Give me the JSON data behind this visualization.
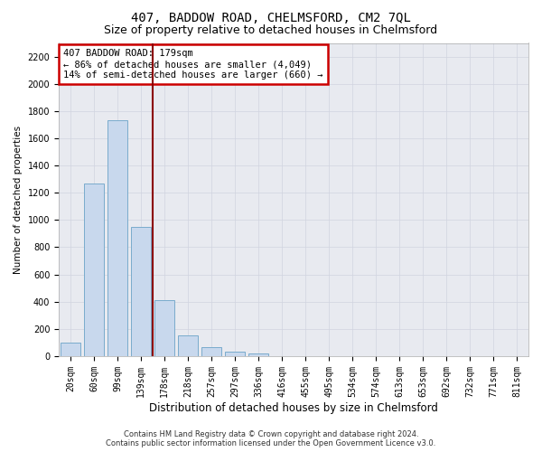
{
  "title": "407, BADDOW ROAD, CHELMSFORD, CM2 7QL",
  "subtitle": "Size of property relative to detached houses in Chelmsford",
  "xlabel": "Distribution of detached houses by size in Chelmsford",
  "ylabel": "Number of detached properties",
  "categories": [
    "20sqm",
    "60sqm",
    "99sqm",
    "139sqm",
    "178sqm",
    "218sqm",
    "257sqm",
    "297sqm",
    "336sqm",
    "416sqm",
    "455sqm",
    "495sqm",
    "534sqm",
    "574sqm",
    "613sqm",
    "653sqm",
    "692sqm",
    "732sqm",
    "771sqm",
    "811sqm"
  ],
  "values": [
    100,
    1270,
    1730,
    950,
    410,
    150,
    65,
    35,
    20,
    0,
    0,
    0,
    0,
    0,
    0,
    0,
    0,
    0,
    0,
    0
  ],
  "bar_color": "#c8d8ed",
  "bar_edge_color": "#7aabcc",
  "highlight_bar_index": 4,
  "highlight_line_color": "#8b0000",
  "annotation_text": "407 BADDOW ROAD: 179sqm\n← 86% of detached houses are smaller (4,049)\n14% of semi-detached houses are larger (660) →",
  "annotation_box_color": "white",
  "annotation_box_edgecolor": "#cc0000",
  "ylim": [
    0,
    2300
  ],
  "yticks": [
    0,
    200,
    400,
    600,
    800,
    1000,
    1200,
    1400,
    1600,
    1800,
    2000,
    2200
  ],
  "grid_color": "#d0d4e0",
  "background_color": "#e8eaf0",
  "footer_line1": "Contains HM Land Registry data © Crown copyright and database right 2024.",
  "footer_line2": "Contains public sector information licensed under the Open Government Licence v3.0.",
  "title_fontsize": 10,
  "subtitle_fontsize": 9,
  "xlabel_fontsize": 8.5,
  "ylabel_fontsize": 7.5,
  "tick_fontsize": 7,
  "annotation_fontsize": 7.5,
  "footer_fontsize": 6
}
